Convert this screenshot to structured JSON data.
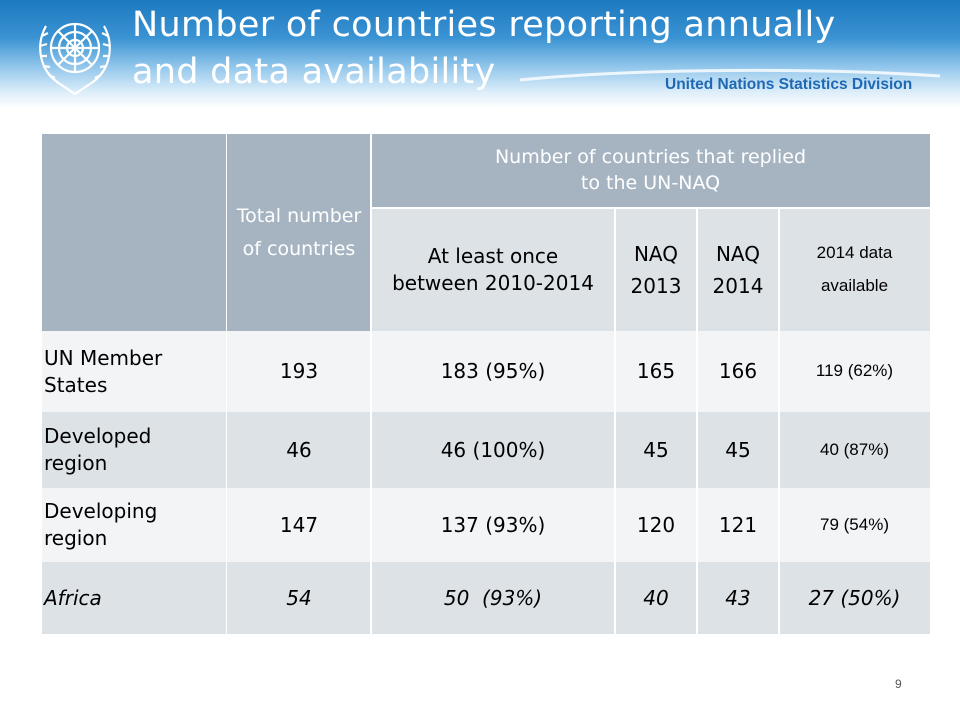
{
  "slide": {
    "title_line1": "Number of countries reporting annually",
    "title_line2": "and data availability",
    "org": "United Nations Statistics Division",
    "page_number": "9"
  },
  "table": {
    "header": {
      "total": "Total number of countries",
      "replied_group": "Number of countries that replied to the UN-NAQ",
      "at_least_once": "At least once between 2010-2014",
      "naq2013": "NAQ 2013",
      "naq2014": "NAQ 2014",
      "data_available": "2014 data available"
    },
    "rows": [
      {
        "label": "UN Member States",
        "total": "193",
        "at_least_once": "183 (95%)",
        "naq2013": "165",
        "naq2014": "166",
        "data_available": "119 (62%)"
      },
      {
        "label": "Developed region",
        "total": "46",
        "at_least_once": "46 (100%)",
        "naq2013": "45",
        "naq2014": "45",
        "data_available": "40 (87%)"
      },
      {
        "label": "Developing region",
        "total": "147",
        "at_least_once": "137 (93%)",
        "naq2013": "120",
        "naq2014": "121",
        "data_available": "79 (54%)"
      },
      {
        "label": "Africa",
        "total": "54",
        "at_least_once": "50  (93%)",
        "naq2013": "40",
        "naq2014": "43",
        "data_available": "27 (50%)"
      }
    ]
  }
}
